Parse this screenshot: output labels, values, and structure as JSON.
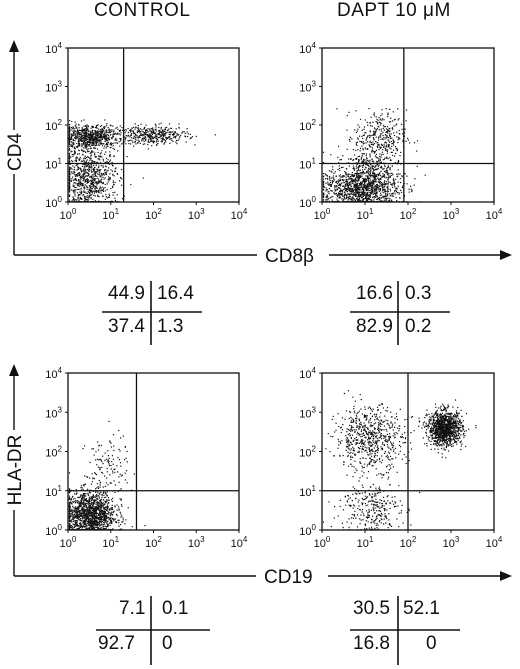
{
  "column_titles": [
    "CONTROL",
    "DAPT 10 μM"
  ],
  "row_axes": [
    {
      "y_label": "CD4",
      "x_label": "CD8β"
    },
    {
      "y_label": "HLA-DR",
      "x_label": "CD19"
    }
  ],
  "tick_labels": [
    "10⁰",
    "10¹",
    "10²",
    "10³",
    "10⁴"
  ],
  "chart_data": [
    {
      "type": "scatter",
      "title": "CONTROL",
      "xlabel": "CD8β",
      "ylabel": "CD4",
      "x_scale": "log",
      "y_scale": "log",
      "xlim": [
        1,
        10000
      ],
      "ylim": [
        1,
        10000
      ],
      "gate": {
        "x": 20,
        "y": 10
      },
      "quadrant_percentages": {
        "upper_left": "44.9",
        "upper_right": "16.4",
        "lower_left": "37.4",
        "lower_right": "1.3"
      },
      "populations": [
        {
          "cx": 0.5,
          "cy": 1.7,
          "sx": 0.35,
          "sy": 0.15,
          "n": 700
        },
        {
          "cx": 0.5,
          "cy": 0.5,
          "sx": 0.35,
          "sy": 0.4,
          "n": 650
        },
        {
          "cx": 2.0,
          "cy": 1.75,
          "sx": 0.4,
          "sy": 0.12,
          "n": 380
        },
        {
          "cx": 0.4,
          "cy": 1.0,
          "sx": 0.3,
          "sy": 0.3,
          "n": 200
        }
      ]
    },
    {
      "type": "scatter",
      "title": "DAPT 10 μM",
      "xlabel": "CD8β",
      "ylabel": "CD4",
      "x_scale": "log",
      "y_scale": "log",
      "xlim": [
        1,
        10000
      ],
      "ylim": [
        1,
        10000
      ],
      "gate": {
        "x": 80,
        "y": 10
      },
      "quadrant_percentages": {
        "upper_left": "16.6",
        "upper_right": "0.3",
        "lower_left": "82.9",
        "lower_right": "0.2"
      },
      "populations": [
        {
          "cx": 0.9,
          "cy": 0.35,
          "sx": 0.45,
          "sy": 0.3,
          "n": 1300
        },
        {
          "cx": 1.35,
          "cy": 1.7,
          "sx": 0.3,
          "sy": 0.35,
          "n": 320
        },
        {
          "cx": 1.1,
          "cy": 1.0,
          "sx": 0.3,
          "sy": 0.3,
          "n": 200
        }
      ]
    },
    {
      "type": "scatter",
      "title": "CONTROL",
      "xlabel": "CD19",
      "ylabel": "HLA-DR",
      "x_scale": "log",
      "y_scale": "log",
      "xlim": [
        1,
        10000
      ],
      "ylim": [
        1,
        10000
      ],
      "gate": {
        "x": 40,
        "y": 10
      },
      "quadrant_percentages": {
        "upper_left": "7.1",
        "upper_right": "0.1",
        "lower_left": "92.7",
        "lower_right": "0"
      },
      "populations": [
        {
          "cx": 0.5,
          "cy": 0.4,
          "sx": 0.3,
          "sy": 0.3,
          "n": 1400
        },
        {
          "cx": 0.9,
          "cy": 1.55,
          "sx": 0.25,
          "sy": 0.45,
          "n": 130
        }
      ]
    },
    {
      "type": "scatter",
      "title": "DAPT 10 μM",
      "xlabel": "CD19",
      "ylabel": "HLA-DR",
      "x_scale": "log",
      "y_scale": "log",
      "xlim": [
        1,
        10000
      ],
      "ylim": [
        1,
        10000
      ],
      "gate": {
        "x": 100,
        "y": 10
      },
      "quadrant_percentages": {
        "upper_left": "30.5",
        "upper_right": "52.1",
        "lower_left": "16.8",
        "lower_right": "0"
      },
      "populations": [
        {
          "cx": 1.1,
          "cy": 2.35,
          "sx": 0.4,
          "sy": 0.4,
          "n": 650
        },
        {
          "cx": 2.85,
          "cy": 2.6,
          "sx": 0.2,
          "sy": 0.22,
          "n": 1100
        },
        {
          "cx": 1.1,
          "cy": 0.55,
          "sx": 0.35,
          "sy": 0.35,
          "n": 300
        }
      ]
    }
  ]
}
